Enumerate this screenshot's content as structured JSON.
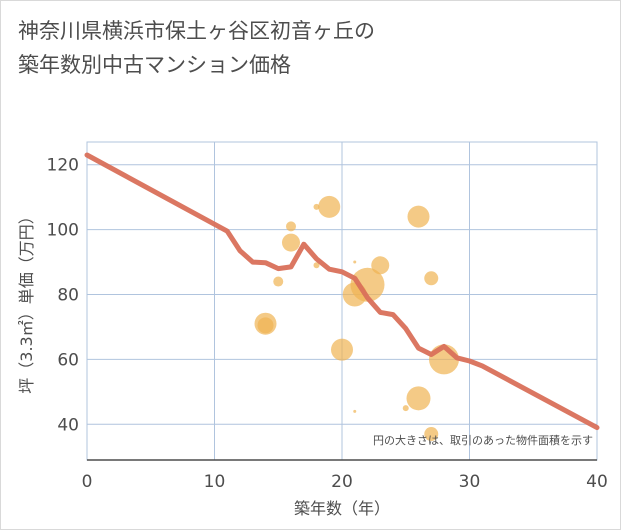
{
  "title_line1": "神奈川県横浜市保土ヶ谷区初音ヶ丘の",
  "title_line2": "築年数別中古マンション価格",
  "chart_data": {
    "type": "scatter",
    "title": "神奈川県横浜市保土ヶ谷区初音ヶ丘の築年数別中古マンション価格",
    "xlabel": "築年数（年）",
    "ylabel": "坪（3.3㎡）単価（万円）",
    "xlim": [
      0,
      40
    ],
    "ylim": [
      29,
      127
    ],
    "xticks": [
      0,
      10,
      20,
      30,
      40
    ],
    "yticks": [
      40,
      60,
      80,
      100,
      120
    ],
    "grid": true,
    "note": "円の大きさは、取引のあった物件面積を示す",
    "colors": {
      "line": "#d9705a",
      "bubble": "#f0b453",
      "grid": "#b0c4de",
      "axis": "#4d4d4d"
    },
    "series": [
      {
        "name": "trend",
        "type": "line",
        "x": [
          0,
          11,
          12,
          13,
          14,
          15,
          16,
          17,
          18,
          19,
          20,
          21,
          22,
          23,
          24,
          25,
          26,
          27,
          28,
          29,
          30,
          31,
          40
        ],
        "y": [
          123,
          99.5,
          93.5,
          90,
          89.8,
          88,
          88.5,
          95.5,
          91,
          87.8,
          87,
          85,
          79,
          74.5,
          73.8,
          69.5,
          63.5,
          61.5,
          64,
          60.5,
          59.5,
          58,
          39
        ]
      },
      {
        "name": "transactions",
        "type": "bubble",
        "points": [
          {
            "x": 14,
            "y": 71,
            "size": 11
          },
          {
            "x": 14,
            "y": 70.5,
            "size": 8
          },
          {
            "x": 15,
            "y": 84,
            "size": 5
          },
          {
            "x": 16,
            "y": 101,
            "size": 5
          },
          {
            "x": 16,
            "y": 96,
            "size": 9
          },
          {
            "x": 18,
            "y": 89,
            "size": 3
          },
          {
            "x": 18,
            "y": 107,
            "size": 3
          },
          {
            "x": 19,
            "y": 107,
            "size": 11
          },
          {
            "x": 20,
            "y": 63,
            "size": 11
          },
          {
            "x": 21,
            "y": 80,
            "size": 12
          },
          {
            "x": 21,
            "y": 90,
            "size": 1.5
          },
          {
            "x": 21,
            "y": 44,
            "size": 1.5
          },
          {
            "x": 22,
            "y": 83,
            "size": 17
          },
          {
            "x": 23,
            "y": 89,
            "size": 9
          },
          {
            "x": 25,
            "y": 45,
            "size": 3
          },
          {
            "x": 26,
            "y": 104,
            "size": 11
          },
          {
            "x": 26,
            "y": 48,
            "size": 12
          },
          {
            "x": 27,
            "y": 85,
            "size": 7
          },
          {
            "x": 27,
            "y": 37,
            "size": 7
          },
          {
            "x": 28,
            "y": 60,
            "size": 15
          }
        ]
      }
    ]
  }
}
